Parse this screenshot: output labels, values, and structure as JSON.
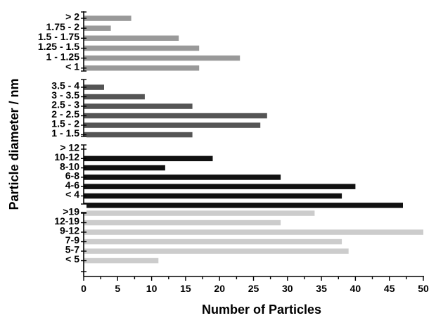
{
  "chart_data": {
    "type": "bar",
    "orientation": "horizontal",
    "xlabel": "Number of Particles",
    "ylabel": "Particle diameter / nm",
    "xlim": [
      0,
      52
    ],
    "xticks": [
      0,
      5,
      10,
      15,
      20,
      25,
      30,
      35,
      40,
      45,
      50
    ],
    "grid": false,
    "legend": "none",
    "groups": [
      {
        "color": "#999999",
        "bars": [
          {
            "label": "> 2",
            "value": 7
          },
          {
            "label": "1.75 - 2",
            "value": 4
          },
          {
            "label": "1.5 - 1.75",
            "value": 14
          },
          {
            "label": "1.25 - 1.5",
            "value": 17
          },
          {
            "label": "1 - 1.25",
            "value": 23
          },
          {
            "label": "< 1",
            "value": 17
          }
        ]
      },
      {
        "color": "#555555",
        "bars": [
          {
            "label": "3.5 - 4",
            "value": 3
          },
          {
            "label": "3 - 3.5",
            "value": 9
          },
          {
            "label": "2.5 - 3",
            "value": 16
          },
          {
            "label": "2 - 2.5",
            "value": 27
          },
          {
            "label": "1.5 - 2",
            "value": 26
          },
          {
            "label": "1 - 1.5",
            "value": 16
          }
        ]
      },
      {
        "color": "#111111",
        "bars": [
          {
            "label": "> 12",
            "value": null
          },
          {
            "label": "10-12",
            "value": 19
          },
          {
            "label": "8-10",
            "value": 12
          },
          {
            "label": "6-8",
            "value": 29
          },
          {
            "label": "4-6",
            "value": 40
          },
          {
            "label": "< 4",
            "value": 38
          },
          {
            "label": "",
            "value": 47
          }
        ]
      },
      {
        "color": "#cccccc",
        "bars": [
          {
            "label": ">19",
            "value": 34
          },
          {
            "label": "12-19",
            "value": 29
          },
          {
            "label": "9-12",
            "value": 50
          },
          {
            "label": "7-9",
            "value": 38
          },
          {
            "label": "5-7",
            "value": 39
          },
          {
            "label": "< 5",
            "value": 11
          }
        ]
      }
    ]
  }
}
